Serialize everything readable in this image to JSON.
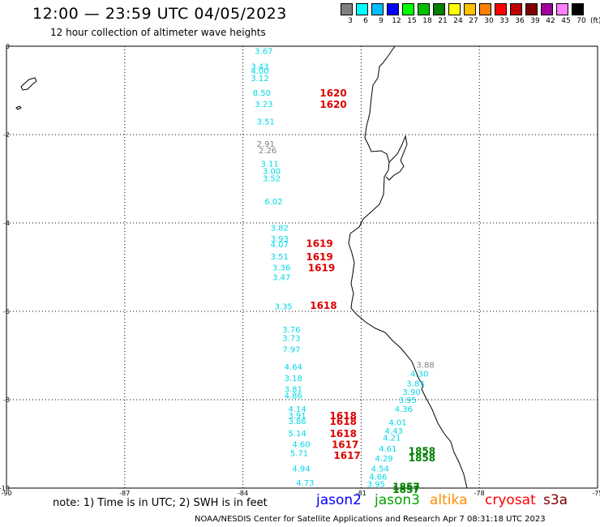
{
  "header": {
    "title": "12:00 — 23:59 UTC 04/05/2023",
    "subtitle": "12 hour collection of altimeter wave heights"
  },
  "color_scale": {
    "units": "(ft)",
    "bins": [
      {
        "label": "3",
        "color": "#808080"
      },
      {
        "label": "6",
        "color": "#00ffff"
      },
      {
        "label": "9",
        "color": "#00bfff"
      },
      {
        "label": "12",
        "color": "#0000ff"
      },
      {
        "label": "15",
        "color": "#00ff00"
      },
      {
        "label": "18",
        "color": "#00c000"
      },
      {
        "label": "21",
        "color": "#008000"
      },
      {
        "label": "24",
        "color": "#ffff00"
      },
      {
        "label": "27",
        "color": "#ffc000"
      },
      {
        "label": "30",
        "color": "#ff8000"
      },
      {
        "label": "33",
        "color": "#ff0000"
      },
      {
        "label": "36",
        "color": "#c00000"
      },
      {
        "label": "39",
        "color": "#800000"
      },
      {
        "label": "42",
        "color": "#a000a0"
      },
      {
        "label": "45",
        "color": "#ff80ff"
      },
      {
        "label": "70",
        "color": "#000000"
      }
    ]
  },
  "axes": {
    "lon_ticks": [
      "-90",
      "-87",
      "-84",
      "-81",
      "-78",
      "-75"
    ],
    "lat_ticks": [
      "0",
      "-2",
      "-4",
      "-6",
      "-8",
      "-10"
    ]
  },
  "observations": [
    {
      "text": "3.67",
      "color": "#00d8e8",
      "lon": -83.7,
      "lat": -0.1
    },
    {
      "text": "3.43",
      "color": "#00d8e8",
      "lon": -83.8,
      "lat": -0.45
    },
    {
      "text": "4.00",
      "color": "#00d8e8",
      "lon": -83.8,
      "lat": -0.55
    },
    {
      "text": "3.12",
      "color": "#00d8e8",
      "lon": -83.8,
      "lat": -0.72
    },
    {
      "text": "8.50",
      "color": "#00d8e8",
      "lon": -83.75,
      "lat": -1.05
    },
    {
      "text": "3.23",
      "color": "#00d8e8",
      "lon": -83.7,
      "lat": -1.3
    },
    {
      "text": "3.51",
      "color": "#00d8e8",
      "lon": -83.65,
      "lat": -1.7
    },
    {
      "text": "2.91",
      "color": "#808080",
      "lon": -83.65,
      "lat": -2.2
    },
    {
      "text": "2.26",
      "color": "#808080",
      "lon": -83.6,
      "lat": -2.35
    },
    {
      "text": "3.11",
      "color": "#00d8e8",
      "lon": -83.55,
      "lat": -2.65
    },
    {
      "text": "3.00",
      "color": "#00d8e8",
      "lon": -83.5,
      "lat": -2.82
    },
    {
      "text": "3.52",
      "color": "#00d8e8",
      "lon": -83.5,
      "lat": -2.98
    },
    {
      "text": "6.02",
      "color": "#00d8e8",
      "lon": -83.45,
      "lat": -3.5
    },
    {
      "text": "3.82",
      "color": "#00d8e8",
      "lon": -83.3,
      "lat": -4.1
    },
    {
      "text": "3.93",
      "color": "#00d8e8",
      "lon": -83.3,
      "lat": -4.35
    },
    {
      "text": "4.07",
      "color": "#00d8e8",
      "lon": -83.3,
      "lat": -4.48
    },
    {
      "text": "3.51",
      "color": "#00d8e8",
      "lon": -83.3,
      "lat": -4.75
    },
    {
      "text": "3.36",
      "color": "#00d8e8",
      "lon": -83.25,
      "lat": -5.0
    },
    {
      "text": "3.47",
      "color": "#00d8e8",
      "lon": -83.25,
      "lat": -5.22
    },
    {
      "text": "3.35",
      "color": "#00d8e8",
      "lon": -83.2,
      "lat": -5.88
    },
    {
      "text": "3.76",
      "color": "#00d8e8",
      "lon": -83.0,
      "lat": -6.4
    },
    {
      "text": "3.73",
      "color": "#00d8e8",
      "lon": -83.0,
      "lat": -6.6
    },
    {
      "text": "7.97",
      "color": "#00d8e8",
      "lon": -83.0,
      "lat": -6.85
    },
    {
      "text": "4.64",
      "color": "#00d8e8",
      "lon": -82.95,
      "lat": -7.25
    },
    {
      "text": "3.18",
      "color": "#00d8e8",
      "lon": -82.95,
      "lat": -7.5
    },
    {
      "text": "3.81",
      "color": "#00d8e8",
      "lon": -82.95,
      "lat": -7.75
    },
    {
      "text": "4.86",
      "color": "#00d8e8",
      "lon": -82.95,
      "lat": -7.9
    },
    {
      "text": "4.14",
      "color": "#00d8e8",
      "lon": -82.85,
      "lat": -8.2
    },
    {
      "text": "3.91",
      "color": "#00d8e8",
      "lon": -82.85,
      "lat": -8.35
    },
    {
      "text": "3.86",
      "color": "#00d8e8",
      "lon": -82.85,
      "lat": -8.48
    },
    {
      "text": "5.14",
      "color": "#00d8e8",
      "lon": -82.85,
      "lat": -8.75
    },
    {
      "text": "4.60",
      "color": "#00d8e8",
      "lon": -82.75,
      "lat": -9.0
    },
    {
      "text": "5.71",
      "color": "#00d8e8",
      "lon": -82.8,
      "lat": -9.2
    },
    {
      "text": "4.94",
      "color": "#00d8e8",
      "lon": -82.75,
      "lat": -9.55
    },
    {
      "text": "4.73",
      "color": "#00d8e8",
      "lon": -82.65,
      "lat": -9.87
    },
    {
      "text": "3.88",
      "color": "#808080",
      "lon": -79.6,
      "lat": -7.2
    },
    {
      "text": "4.30",
      "color": "#00d8e8",
      "lon": -79.75,
      "lat": -7.4
    },
    {
      "text": "3.83",
      "color": "#00d8e8",
      "lon": -79.85,
      "lat": -7.62
    },
    {
      "text": "3.90",
      "color": "#00d8e8",
      "lon": -79.95,
      "lat": -7.82
    },
    {
      "text": "3.95",
      "color": "#00d8e8",
      "lon": -80.05,
      "lat": -8.0
    },
    {
      "text": "4.36",
      "color": "#00d8e8",
      "lon": -80.15,
      "lat": -8.2
    },
    {
      "text": "4.01",
      "color": "#00d8e8",
      "lon": -80.3,
      "lat": -8.5
    },
    {
      "text": "4.43",
      "color": "#00d8e8",
      "lon": -80.4,
      "lat": -8.7
    },
    {
      "text": "4.21",
      "color": "#00d8e8",
      "lon": -80.45,
      "lat": -8.85
    },
    {
      "text": "4.61",
      "color": "#00d8e8",
      "lon": -80.55,
      "lat": -9.1
    },
    {
      "text": "4.29",
      "color": "#00d8e8",
      "lon": -80.65,
      "lat": -9.32
    },
    {
      "text": "4.54",
      "color": "#00d8e8",
      "lon": -80.75,
      "lat": -9.55
    },
    {
      "text": "4.66",
      "color": "#00d8e8",
      "lon": -80.8,
      "lat": -9.73
    },
    {
      "text": "3.95",
      "color": "#00d8e8",
      "lon": -80.85,
      "lat": -9.9
    }
  ],
  "time_labels": [
    {
      "text": "1620",
      "color": "#dd0000",
      "lon": -82.05,
      "lat": -1.05
    },
    {
      "text": "1620",
      "color": "#dd0000",
      "lon": -82.05,
      "lat": -1.3
    },
    {
      "text": "1619",
      "color": "#dd0000",
      "lon": -82.4,
      "lat": -4.45
    },
    {
      "text": "1619",
      "color": "#dd0000",
      "lon": -82.4,
      "lat": -4.75
    },
    {
      "text": "1619",
      "color": "#dd0000",
      "lon": -82.35,
      "lat": -5.0
    },
    {
      "text": "1618",
      "color": "#dd0000",
      "lon": -82.3,
      "lat": -5.85
    },
    {
      "text": "1618",
      "color": "#dd0000",
      "lon": -81.8,
      "lat": -8.35
    },
    {
      "text": "1618",
      "color": "#dd0000",
      "lon": -81.8,
      "lat": -8.48
    },
    {
      "text": "1618",
      "color": "#dd0000",
      "lon": -81.8,
      "lat": -8.75
    },
    {
      "text": "1617",
      "color": "#dd0000",
      "lon": -81.75,
      "lat": -9.0
    },
    {
      "text": "1617",
      "color": "#dd0000",
      "lon": -81.7,
      "lat": -9.25
    },
    {
      "text": "1858",
      "color": "#008000",
      "lon": -79.8,
      "lat": -9.15
    },
    {
      "text": "1858",
      "color": "#008000",
      "lon": -79.8,
      "lat": -9.3
    },
    {
      "text": "1857",
      "color": "#008000",
      "lon": -80.2,
      "lat": -9.95
    },
    {
      "text": "1857",
      "color": "#008000",
      "lon": -80.2,
      "lat": -10.02
    }
  ],
  "footer": {
    "note": "note: 1) Time is in UTC; 2) SWH is in feet",
    "satellites": [
      {
        "name": "jason2",
        "color": "#0000ff"
      },
      {
        "name": "jason3",
        "color": "#00a000"
      },
      {
        "name": "altika",
        "color": "#ff8c00"
      },
      {
        "name": "cryosat",
        "color": "#ff0000"
      },
      {
        "name": "s3a",
        "color": "#800000"
      }
    ],
    "credit": "NOAA/NESDIS Center for Satellite Applications and Research   Apr  7 08:31:18 UTC 2023"
  }
}
